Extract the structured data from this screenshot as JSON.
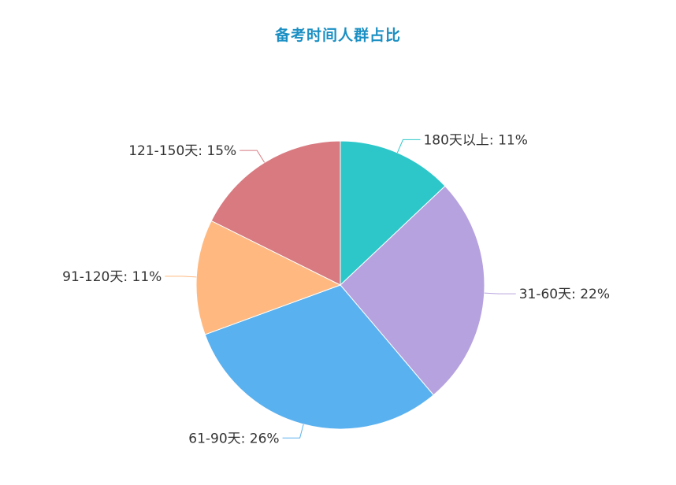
{
  "chart_data": {
    "type": "pie",
    "title": "备考时间人群占比",
    "start_angle_deg": 90,
    "direction": "clockwise",
    "slices": [
      {
        "label": "180天以上: 11%",
        "value": 11,
        "color": "#2ec7c9"
      },
      {
        "label": "31-60天: 22%",
        "value": 22,
        "color": "#b6a2de"
      },
      {
        "label": "61-90天: 26%",
        "value": 26,
        "color": "#5ab1ef"
      },
      {
        "label": "91-120天: 11%",
        "value": 11,
        "color": "#ffb980"
      },
      {
        "label": "121-150天: 15%",
        "value": 15,
        "color": "#d87a80"
      }
    ]
  }
}
